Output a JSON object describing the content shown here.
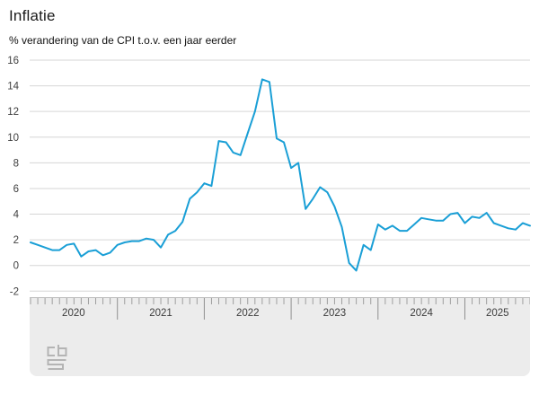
{
  "header": {
    "title": "Inflatie",
    "subtitle": "% verandering van de CPI t.o.v. een jaar eerder"
  },
  "chart_data": {
    "type": "line",
    "title": "Inflatie",
    "subtitle": "% verandering van de CPI t.o.v. een jaar eerder",
    "unit": "%",
    "x_start": "2020-01",
    "x_end": "2025-10",
    "years": [
      "2020",
      "2021",
      "2022",
      "2023",
      "2024",
      "2025"
    ],
    "months_per_year": 12,
    "ylim": [
      -2,
      16
    ],
    "ytick_step": 2,
    "yticks": [
      16,
      14,
      12,
      10,
      8,
      6,
      4,
      2,
      0,
      -2
    ],
    "grid": true,
    "legend": "none",
    "line_color": "#1a9fd6",
    "grid_color": "#d6d6d6",
    "axis_text_color": "#404040",
    "series": [
      {
        "name": "Inflatie (CPI, % verandering t.o.v. een jaar eerder)",
        "values": [
          1.8,
          1.6,
          1.4,
          1.2,
          1.2,
          1.6,
          1.7,
          0.7,
          1.1,
          1.2,
          0.8,
          1.0,
          1.6,
          1.8,
          1.9,
          1.9,
          2.1,
          2.0,
          1.4,
          2.4,
          2.7,
          3.4,
          5.2,
          5.7,
          6.4,
          6.2,
          9.7,
          9.6,
          8.8,
          8.6,
          10.3,
          12.0,
          14.5,
          14.3,
          9.9,
          9.6,
          7.6,
          8.0,
          4.4,
          5.2,
          6.1,
          5.7,
          4.6,
          3.0,
          0.2,
          -0.4,
          1.6,
          1.2,
          3.2,
          2.8,
          3.1,
          2.7,
          2.7,
          3.2,
          3.7,
          3.6,
          3.5,
          3.5,
          4.0,
          4.1,
          3.3,
          3.8,
          3.7,
          4.1,
          3.3,
          3.1,
          2.9,
          2.8,
          3.3,
          3.1
        ]
      }
    ]
  },
  "navigator": {
    "year_labels": [
      "2020",
      "2021",
      "2022",
      "2023",
      "2024",
      "2025"
    ],
    "tick_color": "#9f9f9f",
    "divider_color": "#8f8f8f",
    "label_color": "#3c3c3c",
    "background": "#ececec"
  },
  "footer": {
    "logo_name": "cbs-logo",
    "logo_color": "#b4b4b4"
  }
}
